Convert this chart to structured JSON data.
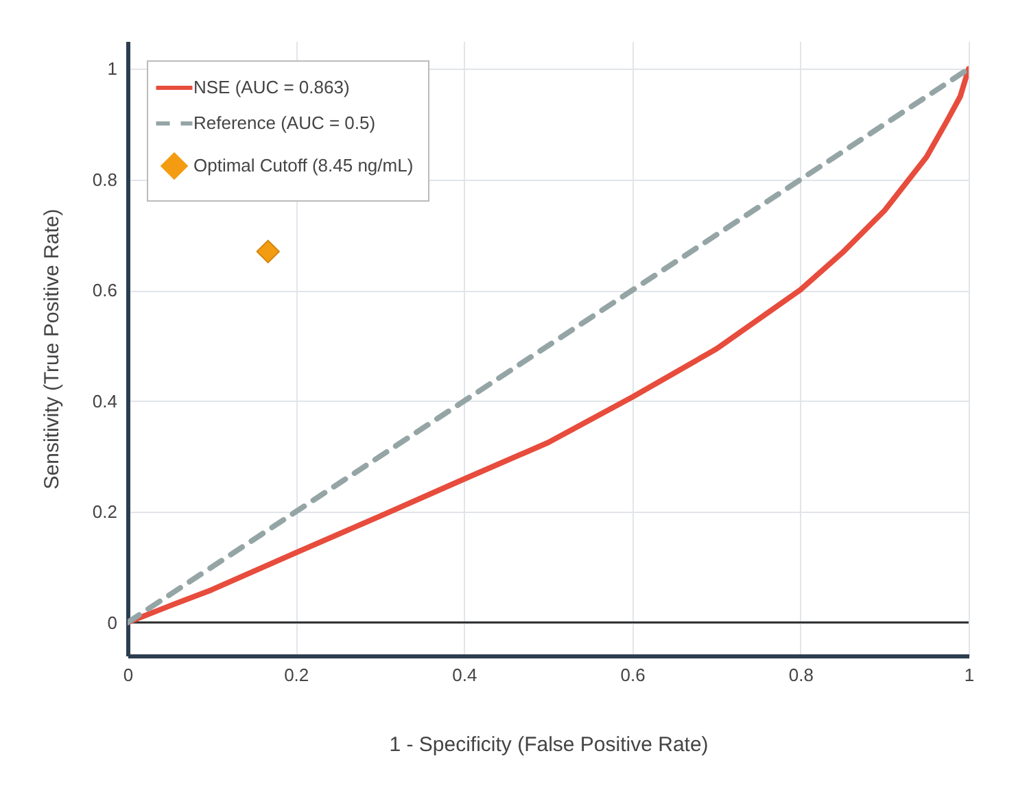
{
  "chart_data": {
    "type": "line",
    "xlabel": "1 - Specificity (False Positive Rate)",
    "ylabel": "Sensitivity (True Positive Rate)",
    "xlim": [
      0,
      1
    ],
    "ylim": [
      -0.06,
      1.05
    ],
    "xticks": [
      0,
      0.2,
      0.4,
      0.6,
      0.8,
      1
    ],
    "yticks": [
      0,
      0.2,
      0.4,
      0.6,
      0.8,
      1
    ],
    "grid": true,
    "legend": "top left",
    "ref_lines": [
      {
        "axis": "y",
        "value": 0,
        "color": "#333333"
      }
    ],
    "series": [
      {
        "name": "NSE (AUC = 0.863)",
        "color": "#e74c3c",
        "line_style": "solid",
        "x": [
          0,
          0.05,
          0.1,
          0.2,
          0.3,
          0.4,
          0.5,
          0.6,
          0.7,
          0.8,
          0.85,
          0.9,
          0.95,
          0.975,
          0.99,
          1
        ],
        "values": [
          0,
          0.03,
          0.059,
          0.126,
          0.192,
          0.259,
          0.325,
          0.407,
          0.494,
          0.601,
          0.668,
          0.744,
          0.841,
          0.908,
          0.95,
          1
        ]
      },
      {
        "name": "Reference (AUC = 0.5)",
        "color": "#95a5a6",
        "line_style": "dashed",
        "x": [
          0,
          1
        ],
        "values": [
          0,
          1
        ]
      },
      {
        "name": "Optimal Cutoff (8.45 ng/mL)",
        "type": "scatter",
        "color": "#f39c12",
        "marker": "diamond",
        "x": [
          0.167
        ],
        "values": [
          0.67
        ]
      }
    ]
  }
}
